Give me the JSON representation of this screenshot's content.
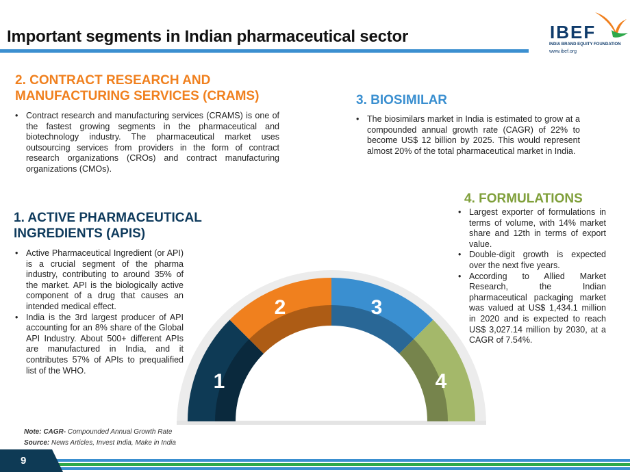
{
  "header": {
    "title": "Important segments in Indian pharmaceutical sector",
    "logo_name": "IBEF",
    "logo_subtitle": "INDIA BRAND EQUITY FOUNDATION",
    "logo_url": "www.ibef.org"
  },
  "sections": {
    "crams": {
      "heading_line1": "2. CONTRACT RESEARCH AND",
      "heading_line2": "MANUFACTURING SERVICES (CRAMS)",
      "bullets": [
        "Contract research and manufacturing services (CRAMS) is one of the fastest growing segments in the pharmaceutical and biotechnology industry. The pharmaceutical market uses outsourcing services from providers in the form of contract research organizations (CROs) and contract manufacturing organizations (CMOs)."
      ]
    },
    "biosimilar": {
      "heading": "3. BIOSIMILAR",
      "bullets": [
        "The biosimilars market in India is estimated to grow at a compounded annual growth rate (CAGR) of 22% to become US$ 12 billion by 2025. This would represent almost 20% of the total pharmaceutical market in India."
      ]
    },
    "apis": {
      "heading_line1": "1. ACTIVE PHARMACEUTICAL",
      "heading_line2": "INGREDIENTS (APIS)",
      "bullets": [
        "Active Pharmaceutical Ingredient (or API) is a crucial segment of the pharma industry, contributing to around 35% of the market. API is the biologically active component of a drug that causes an intended medical effect.",
        "India is the 3rd largest producer of API accounting for an 8% share of the Global API Industry. About 500+ different APIs are manufactured in India, and it contributes 57% of APIs to prequalified list of the WHO."
      ]
    },
    "formulations": {
      "heading": "4. FORMULATIONS",
      "bullets": [
        "Largest exporter of formulations in terms of volume, with 14% market share and 12th in terms of export value.",
        "Double-digit growth is expected over the next five years.",
        "According to Allied Market Research, the Indian pharmaceutical packaging market was valued at US$ 1,434.1 million in 2020 and is expected to reach US$ 3,027.14 million by 2030, at a CAGR of 7.54%."
      ]
    }
  },
  "gauge": {
    "segments": [
      {
        "label": "1",
        "color": "#0e3a55"
      },
      {
        "label": "2",
        "color": "#f0801e"
      },
      {
        "label": "3",
        "color": "#3a8fd0"
      },
      {
        "label": "4",
        "color": "#a4b86a"
      }
    ]
  },
  "notes": {
    "note_label": "Note: CAGR-",
    "note_text": " Compounded Annual Growth Rate",
    "source_label": "Source:",
    "source_text": " News Articles, Invest India, Make in India"
  },
  "footer": {
    "page_number": "9"
  },
  "colors": {
    "accent_blue": "#3a8fd0",
    "accent_orange": "#f0801e",
    "navy": "#0e3a55",
    "green": "#a4b86a",
    "footer_green": "#2ea84a"
  }
}
